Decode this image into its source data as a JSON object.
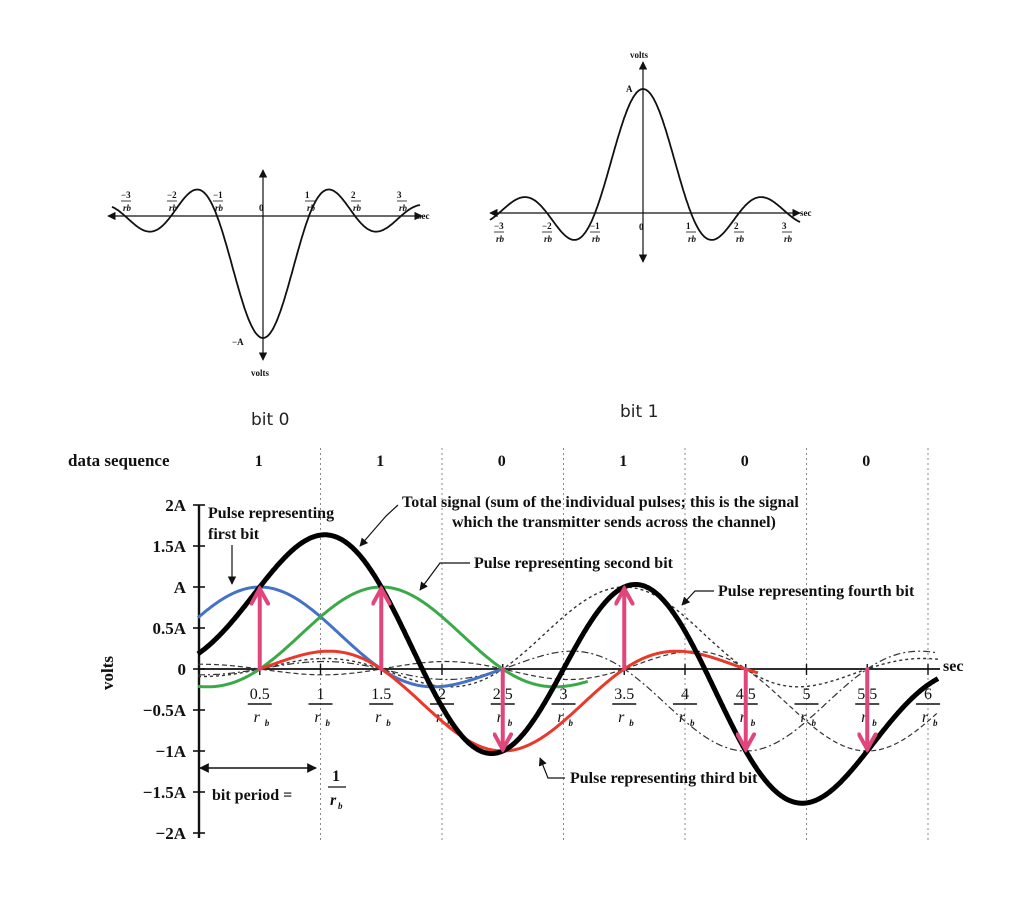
{
  "top_left": {
    "vlabel": "volts",
    "hlabel": "sec",
    "peak": "−A",
    "origin": "0",
    "xticks": [
      {
        "sign": "−",
        "num": "3",
        "den": "r",
        "sub": "b"
      },
      {
        "sign": "−",
        "num": "2",
        "den": "r",
        "sub": "b"
      },
      {
        "sign": "−",
        "num": "1",
        "den": "r",
        "sub": "b"
      },
      {
        "sign": "",
        "num": "1",
        "den": "r",
        "sub": "b"
      },
      {
        "sign": "",
        "num": "2",
        "den": "r",
        "sub": "b"
      },
      {
        "sign": "",
        "num": "3",
        "den": "r",
        "sub": "b"
      }
    ],
    "caption": "bit 0"
  },
  "top_right": {
    "vlabel": "volts",
    "hlabel": "sec",
    "peak": "A",
    "origin": "0",
    "xticks": [
      {
        "sign": "−",
        "num": "3",
        "den": "r",
        "sub": "b"
      },
      {
        "sign": "−",
        "num": "2",
        "den": "r",
        "sub": "b"
      },
      {
        "sign": "−",
        "num": "1",
        "den": "r",
        "sub": "b"
      },
      {
        "sign": "",
        "num": "1",
        "den": "r",
        "sub": "b"
      },
      {
        "sign": "",
        "num": "2",
        "den": "r",
        "sub": "b"
      },
      {
        "sign": "",
        "num": "3",
        "den": "r",
        "sub": "b"
      }
    ],
    "caption": "bit 1"
  },
  "main": {
    "seq_label": "data sequence",
    "data_sequence": [
      "1",
      "1",
      "0",
      "1",
      "0",
      "0"
    ],
    "ylabel": "volts",
    "xlabel": "sec",
    "yticks": [
      "2A",
      "1.5A",
      "A",
      "0.5A",
      "0",
      "−0.5A",
      "−1A",
      "−1.5A",
      "−2A"
    ],
    "xticks": [
      {
        "num": "0.5",
        "den": "r",
        "sub": "b"
      },
      {
        "num": "1",
        "den": "r",
        "sub": "b"
      },
      {
        "num": "1.5",
        "den": "r",
        "sub": "b"
      },
      {
        "num": "2",
        "den": "r",
        "sub": "b"
      },
      {
        "num": "2.5",
        "den": "r",
        "sub": "b"
      },
      {
        "num": "3",
        "den": "r",
        "sub": "b"
      },
      {
        "num": "3.5",
        "den": "r",
        "sub": "b"
      },
      {
        "num": "4",
        "den": "r",
        "sub": "b"
      },
      {
        "num": "4.5",
        "den": "r",
        "sub": "b"
      },
      {
        "num": "5",
        "den": "r",
        "sub": "b"
      },
      {
        "num": "5.5",
        "den": "r",
        "sub": "b"
      },
      {
        "num": "6",
        "den": "r",
        "sub": "b"
      }
    ],
    "annotations": {
      "first_bit": [
        "Pulse representing",
        "first bit"
      ],
      "total_signal": [
        "Total signal (sum of the individual pulses; this is the signal",
        "which the transmitter sends across the channel)"
      ],
      "second_bit": "Pulse representing second bit",
      "fourth_bit": "Pulse representing fourth bit",
      "third_bit": "Pulse representing third bit",
      "bit_period": "bit period =",
      "bit_period_num": "1",
      "bit_period_den": "r",
      "bit_period_sub": "b"
    },
    "colors": {
      "first_bit": "#4472c4",
      "second_bit": "#3aaa48",
      "third_bit": "#e8392b",
      "total": "#000000",
      "arrows": "#e0457b"
    }
  }
}
